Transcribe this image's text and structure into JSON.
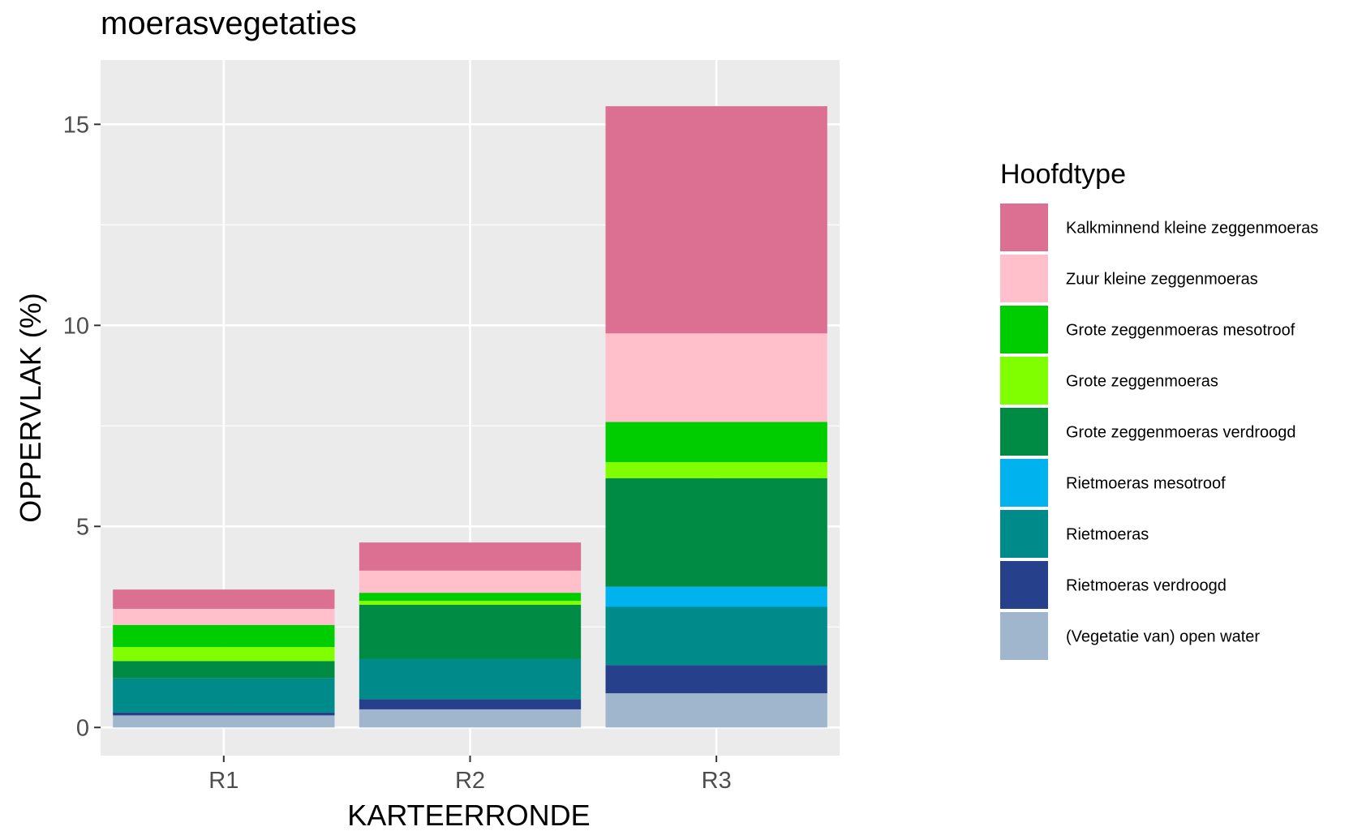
{
  "chart_data": {
    "type": "bar",
    "stacked": true,
    "title": "moerasvegetaties",
    "xlabel": "KARTEERRONDE",
    "ylabel": "OPPERVLAK (%)",
    "categories": [
      "R1",
      "R2",
      "R3"
    ],
    "ylim": [
      -0.7,
      16.6
    ],
    "yticks": [
      0,
      5,
      10,
      15
    ],
    "grid": true,
    "legend": {
      "title": "Hoofdtype",
      "placement": "right"
    },
    "series": [
      {
        "name": "(Vegetatie van) open water",
        "color": "#9fb6cd",
        "values": [
          0.3,
          0.45,
          0.85
        ]
      },
      {
        "name": "Rietmoeras verdroogd",
        "color": "#27408b",
        "values": [
          0.07,
          0.25,
          0.7
        ]
      },
      {
        "name": "Rietmoeras",
        "color": "#008b8b",
        "values": [
          0.85,
          1.0,
          1.45
        ]
      },
      {
        "name": "Rietmoeras mesotroof",
        "color": "#00b2ee",
        "values": [
          0.0,
          0.0,
          0.5
        ]
      },
      {
        "name": "Grote zeggenmoeras verdroogd",
        "color": "#008b45",
        "values": [
          0.43,
          1.35,
          2.7
        ]
      },
      {
        "name": "Grote zeggenmoeras",
        "color": "#7fff00",
        "values": [
          0.35,
          0.1,
          0.4
        ]
      },
      {
        "name": "Grote zeggenmoeras mesotroof",
        "color": "#00cd00",
        "values": [
          0.55,
          0.2,
          1.0
        ]
      },
      {
        "name": "Zuur kleine zeggenmoeras",
        "color": "#ffc0cb",
        "values": [
          0.4,
          0.55,
          2.2
        ]
      },
      {
        "name": "Kalkminnend kleine zeggenmoeras",
        "color": "#db7093",
        "values": [
          0.48,
          0.7,
          5.65
        ]
      }
    ]
  }
}
